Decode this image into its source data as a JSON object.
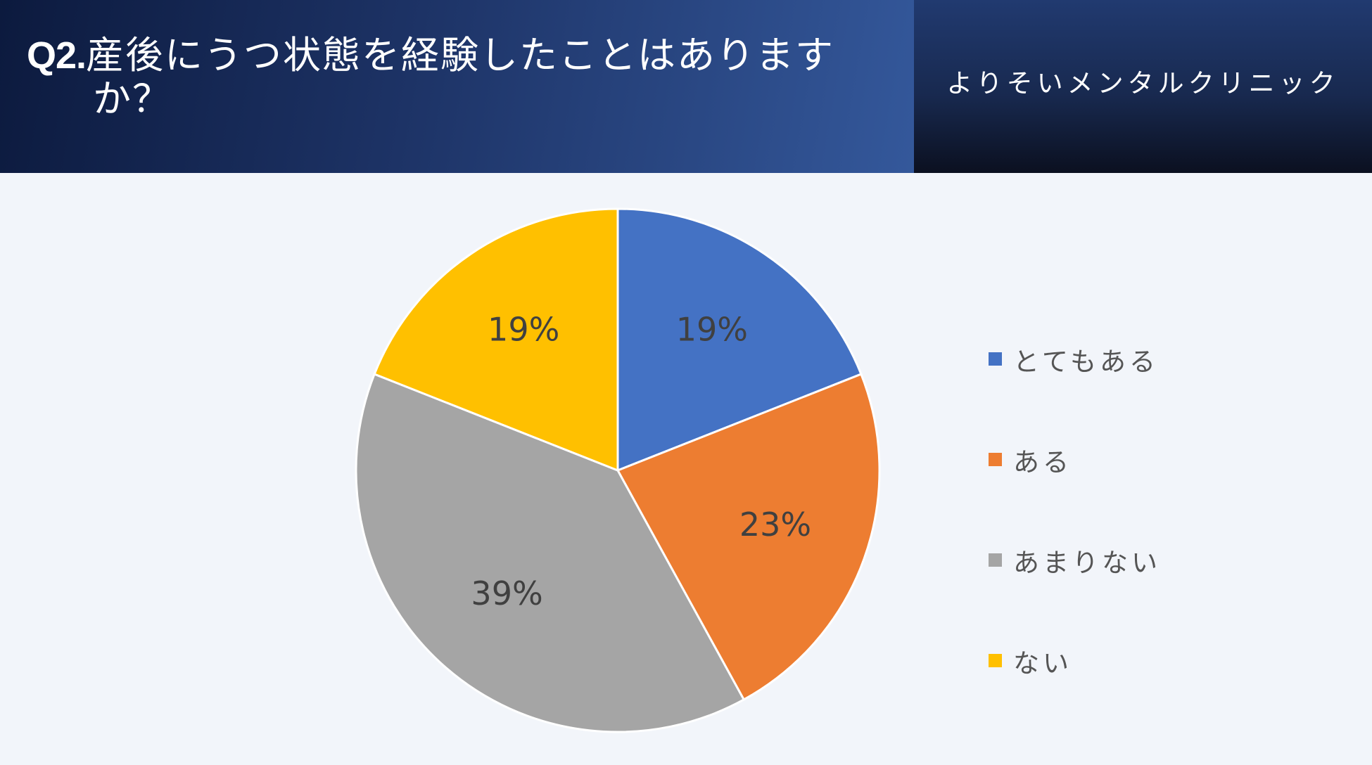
{
  "header": {
    "question_number": "Q2.",
    "question_line1": "産後にうつ状態を経験したことはあります",
    "question_line2": "か？",
    "clinic_name": "よりそいメンタルクリニック"
  },
  "colors": {
    "header_dark": "#0c1a3e",
    "header_light": "#34589b",
    "background": "#f2f5fa"
  },
  "chart_data": {
    "type": "pie",
    "categories": [
      "とてもある",
      "ある",
      "あまりない",
      "ない"
    ],
    "values": [
      19,
      23,
      39,
      19
    ],
    "labels": [
      "19%",
      "23%",
      "39%",
      "19%"
    ],
    "colors": [
      "#4472c4",
      "#ed7d31",
      "#a5a5a5",
      "#ffc000"
    ],
    "start_angle": "12 o'clock",
    "direction": "clockwise",
    "legend_position": "right"
  }
}
